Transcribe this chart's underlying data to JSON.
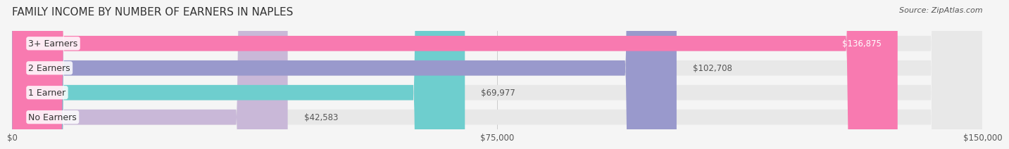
{
  "title": "FAMILY INCOME BY NUMBER OF EARNERS IN NAPLES",
  "source": "Source: ZipAtlas.com",
  "categories": [
    "No Earners",
    "1 Earner",
    "2 Earners",
    "3+ Earners"
  ],
  "values": [
    42583,
    69977,
    102708,
    136875
  ],
  "bar_colors": [
    "#c9b8d8",
    "#6ecece",
    "#9999cc",
    "#f87ab0"
  ],
  "bar_bg_color": "#f0f0f0",
  "value_labels": [
    "$42,583",
    "$69,977",
    "$102,708",
    "$136,875"
  ],
  "x_ticks": [
    0,
    75000,
    150000
  ],
  "x_tick_labels": [
    "$0",
    "$75,000",
    "$150,000"
  ],
  "x_max": 150000,
  "background_color": "#f5f5f5",
  "title_fontsize": 11,
  "label_fontsize": 9,
  "value_fontsize": 8.5
}
